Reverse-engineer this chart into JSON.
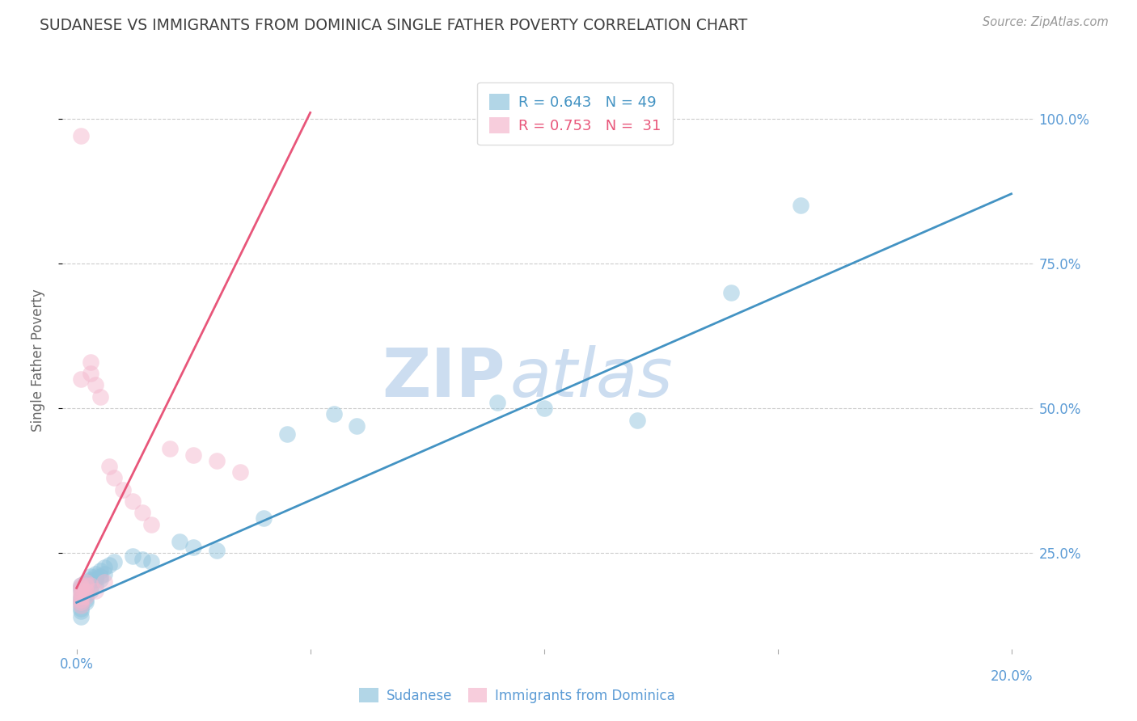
{
  "title": "SUDANESE VS IMMIGRANTS FROM DOMINICA SINGLE FATHER POVERTY CORRELATION CHART",
  "source": "Source: ZipAtlas.com",
  "ylabel": "Single Father Poverty",
  "sudanese_x": [
    0.001,
    0.001,
    0.001,
    0.001,
    0.001,
    0.001,
    0.001,
    0.001,
    0.001,
    0.001,
    0.002,
    0.002,
    0.002,
    0.002,
    0.002,
    0.002,
    0.002,
    0.002,
    0.003,
    0.003,
    0.003,
    0.003,
    0.003,
    0.004,
    0.004,
    0.004,
    0.004,
    0.005,
    0.005,
    0.005,
    0.006,
    0.006,
    0.007,
    0.008,
    0.012,
    0.014,
    0.016,
    0.022,
    0.025,
    0.03,
    0.04,
    0.045,
    0.055,
    0.06,
    0.09,
    0.1,
    0.12,
    0.14,
    0.155
  ],
  "sudanese_y": [
    0.195,
    0.19,
    0.185,
    0.175,
    0.17,
    0.165,
    0.16,
    0.155,
    0.15,
    0.14,
    0.2,
    0.195,
    0.19,
    0.185,
    0.18,
    0.175,
    0.17,
    0.165,
    0.21,
    0.205,
    0.2,
    0.195,
    0.185,
    0.215,
    0.21,
    0.205,
    0.195,
    0.22,
    0.21,
    0.205,
    0.225,
    0.215,
    0.23,
    0.235,
    0.245,
    0.24,
    0.235,
    0.27,
    0.26,
    0.255,
    0.31,
    0.455,
    0.49,
    0.47,
    0.51,
    0.5,
    0.48,
    0.7,
    0.85
  ],
  "dominica_x": [
    0.001,
    0.001,
    0.001,
    0.001,
    0.001,
    0.001,
    0.001,
    0.001,
    0.001,
    0.002,
    0.002,
    0.002,
    0.002,
    0.003,
    0.003,
    0.003,
    0.004,
    0.004,
    0.005,
    0.006,
    0.007,
    0.008,
    0.01,
    0.012,
    0.014,
    0.016,
    0.02,
    0.025,
    0.03,
    0.035,
    0.001
  ],
  "dominica_y": [
    0.97,
    0.195,
    0.19,
    0.185,
    0.18,
    0.175,
    0.17,
    0.165,
    0.16,
    0.2,
    0.195,
    0.185,
    0.175,
    0.58,
    0.56,
    0.195,
    0.54,
    0.185,
    0.52,
    0.2,
    0.4,
    0.38,
    0.36,
    0.34,
    0.32,
    0.3,
    0.43,
    0.42,
    0.41,
    0.39,
    0.55
  ],
  "blue_line_x": [
    0.0,
    0.2
  ],
  "blue_line_y": [
    0.165,
    0.87
  ],
  "pink_line_x": [
    0.0,
    0.05
  ],
  "pink_line_y": [
    0.19,
    1.01
  ],
  "watermark_zip": "ZIP",
  "watermark_atlas": "atlas",
  "watermark_color": "#ccddf0",
  "background_color": "#ffffff",
  "blue_color": "#92c5de",
  "pink_color": "#f4b8ce",
  "blue_line_color": "#4393c3",
  "pink_line_color": "#e8567a",
  "grid_color": "#cccccc",
  "title_color": "#404040",
  "axis_color": "#5b9bd5",
  "y_label_color": "#666666",
  "xlim": [
    -0.003,
    0.205
  ],
  "ylim": [
    0.085,
    1.08
  ],
  "yticks": [
    0.25,
    0.5,
    0.75,
    1.0
  ],
  "ytick_labels": [
    "25.0%",
    "50.0%",
    "75.0%",
    "100.0%"
  ],
  "xticks": [
    0.0,
    0.05,
    0.1,
    0.15,
    0.2
  ],
  "xtick_labels_left": [
    "0.0%"
  ],
  "xtick_labels_right": [
    "20.0%"
  ]
}
